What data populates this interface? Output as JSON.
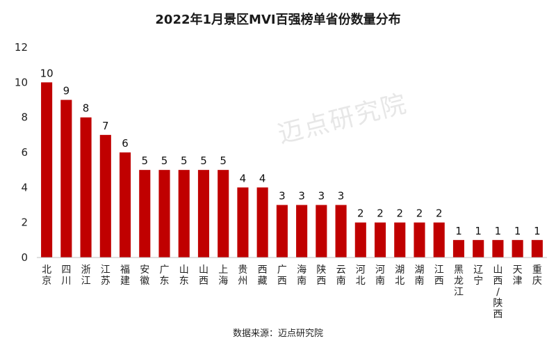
{
  "title": "2022年1月景区MVI百强榜单省份数量分布",
  "source": "数据来源：迈点研究院",
  "watermark": "迈点研究院",
  "chart_data": {
    "type": "bar",
    "title": "2022年1月景区MVI百强榜单省份数量分布",
    "xlabel": "",
    "ylabel": "",
    "ylim": [
      0,
      12
    ],
    "yticks": [
      0,
      2,
      4,
      6,
      8,
      10,
      12
    ],
    "bar_color": "#c00000",
    "grid": false,
    "categories": [
      "北京",
      "四川",
      "浙江",
      "江苏",
      "福建",
      "安徽",
      "广东",
      "山东",
      "山西",
      "上海",
      "贵州",
      "西藏",
      "广西",
      "海南",
      "陕西",
      "云南",
      "河北",
      "河南",
      "湖北",
      "湖南",
      "江西",
      "黑龙江",
      "辽宁",
      "山西/陕西",
      "天津",
      "重庆"
    ],
    "values": [
      10,
      9,
      8,
      7,
      6,
      5,
      5,
      5,
      5,
      5,
      4,
      4,
      3,
      3,
      3,
      3,
      2,
      2,
      2,
      2,
      2,
      1,
      1,
      1,
      1,
      1
    ]
  }
}
